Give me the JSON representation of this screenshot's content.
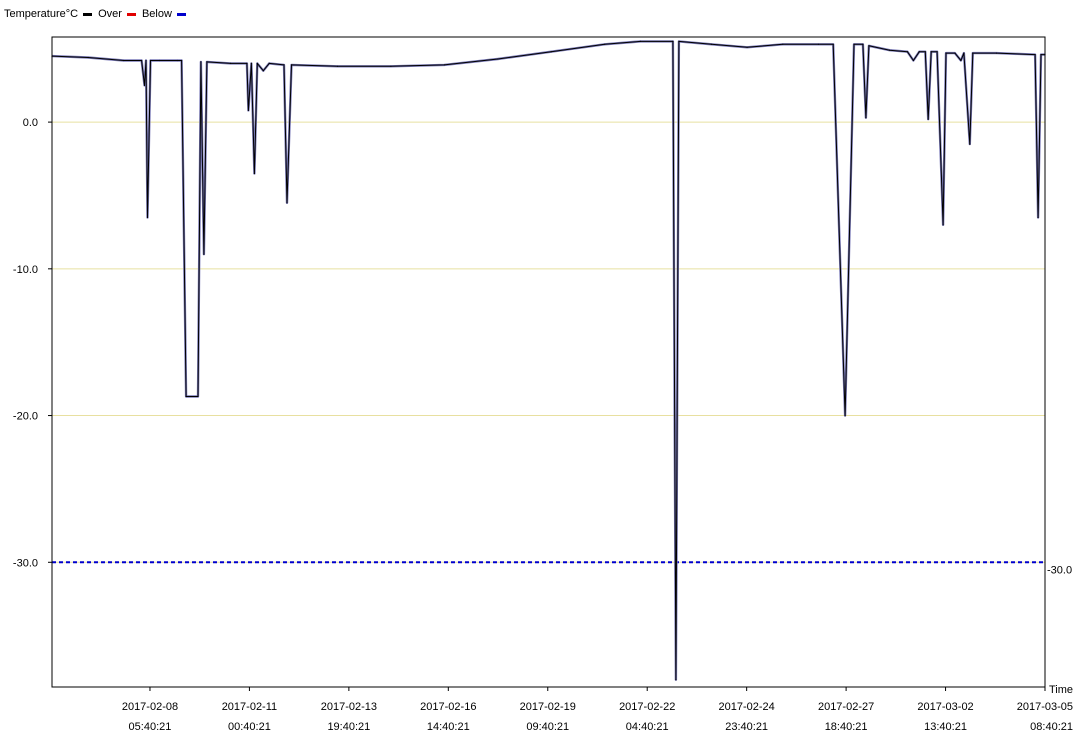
{
  "legend": {
    "title": "Temperature°C",
    "items": [
      {
        "label": "Over",
        "color": "#000000"
      },
      {
        "label": "Below",
        "color": "#0000cc"
      }
    ],
    "title_color": "#000000",
    "over_color": "#e00000",
    "below_color": "#0000cc"
  },
  "chart_data": {
    "type": "line",
    "title": "Temperature°C",
    "xlabel": "Time",
    "ylabel": "",
    "ylim": [
      -38.5,
      5.8
    ],
    "xlim": [
      "2017-02-05 11:40",
      "2017-03-05 08:40:21"
    ],
    "y_ticks": [
      "0.0",
      "-10.0",
      "-20.0",
      "-30.0"
    ],
    "y_tick_values": [
      0,
      -10,
      -20,
      -30
    ],
    "x_ticks": [
      {
        "date": "2017-02-08",
        "time": "05:40:21"
      },
      {
        "date": "2017-02-11",
        "time": "00:40:21"
      },
      {
        "date": "2017-02-13",
        "time": "19:40:21"
      },
      {
        "date": "2017-02-16",
        "time": "14:40:21"
      },
      {
        "date": "2017-02-19",
        "time": "09:40:21"
      },
      {
        "date": "2017-02-22",
        "time": "04:40:21"
      },
      {
        "date": "2017-02-24",
        "time": "23:40:21"
      },
      {
        "date": "2017-02-27",
        "time": "18:40:21"
      },
      {
        "date": "2017-03-02",
        "time": "13:40:21"
      },
      {
        "date": "2017-03-05",
        "time": "08:40:21"
      }
    ],
    "threshold": {
      "value": -30.0,
      "label": "-30.0",
      "color": "#0000cc",
      "style": "dashed"
    },
    "grid": {
      "horizontal": true,
      "vertical": false,
      "color": "#e8e0a0"
    },
    "series": [
      {
        "name": "Temperature°C",
        "color": "#000000",
        "points": [
          [
            "2017-02-05 11:40",
            4.5
          ],
          [
            "2017-02-06 12:00",
            4.4
          ],
          [
            "2017-02-07 12:00",
            4.2
          ],
          [
            "2017-02-08 00:00",
            4.2
          ],
          [
            "2017-02-08 02:00",
            2.5
          ],
          [
            "2017-02-08 03:00",
            4.2
          ],
          [
            "2017-02-08 04:00",
            -6.5
          ],
          [
            "2017-02-08 06:00",
            4.2
          ],
          [
            "2017-02-08 12:00",
            4.2
          ],
          [
            "2017-02-09 00:00",
            4.2
          ],
          [
            "2017-02-09 03:00",
            4.2
          ],
          [
            "2017-02-09 06:00",
            -18.7
          ],
          [
            "2017-02-09 14:00",
            -18.7
          ],
          [
            "2017-02-09 16:00",
            4.1
          ],
          [
            "2017-02-09 18:00",
            -9.0
          ],
          [
            "2017-02-09 20:00",
            4.1
          ],
          [
            "2017-02-10 12:00",
            4.0
          ],
          [
            "2017-02-10 23:00",
            4.0
          ],
          [
            "2017-02-11 00:00",
            0.8
          ],
          [
            "2017-02-11 02:00",
            4.0
          ],
          [
            "2017-02-11 04:00",
            -3.5
          ],
          [
            "2017-02-11 06:00",
            4.0
          ],
          [
            "2017-02-11 10:00",
            3.5
          ],
          [
            "2017-02-11 14:00",
            4.0
          ],
          [
            "2017-02-12 00:00",
            3.9
          ],
          [
            "2017-02-12 02:00",
            -5.5
          ],
          [
            "2017-02-12 05:00",
            3.9
          ],
          [
            "2017-02-13 12:00",
            3.8
          ],
          [
            "2017-02-15 00:00",
            3.8
          ],
          [
            "2017-02-16 12:00",
            3.9
          ],
          [
            "2017-02-18 00:00",
            4.3
          ],
          [
            "2017-02-19 12:00",
            4.8
          ],
          [
            "2017-02-21 00:00",
            5.3
          ],
          [
            "2017-02-22 00:00",
            5.5
          ],
          [
            "2017-02-22 22:00",
            5.5
          ],
          [
            "2017-02-23 00:00",
            -38.0
          ],
          [
            "2017-02-23 02:00",
            5.5
          ],
          [
            "2017-02-24 00:00",
            5.3
          ],
          [
            "2017-02-25 00:00",
            5.1
          ],
          [
            "2017-02-26 00:00",
            5.3
          ],
          [
            "2017-02-27 00:00",
            5.3
          ],
          [
            "2017-02-27 10:00",
            5.3
          ],
          [
            "2017-02-27 18:00",
            -20.0
          ],
          [
            "2017-02-28 00:00",
            5.3
          ],
          [
            "2017-02-28 06:00",
            5.3
          ],
          [
            "2017-02-28 08:00",
            0.3
          ],
          [
            "2017-02-28 10:00",
            5.2
          ],
          [
            "2017-03-01 00:00",
            4.9
          ],
          [
            "2017-03-01 12:00",
            4.8
          ],
          [
            "2017-03-01 16:00",
            4.2
          ],
          [
            "2017-03-01 20:00",
            4.8
          ],
          [
            "2017-03-02 00:00",
            4.8
          ],
          [
            "2017-03-02 02:00",
            0.2
          ],
          [
            "2017-03-02 04:00",
            4.8
          ],
          [
            "2017-03-02 08:00",
            4.8
          ],
          [
            "2017-03-02 12:00",
            -7.0
          ],
          [
            "2017-03-02 14:00",
            4.7
          ],
          [
            "2017-03-02 20:00",
            4.7
          ],
          [
            "2017-03-03 00:00",
            4.2
          ],
          [
            "2017-03-03 02:00",
            4.7
          ],
          [
            "2017-03-03 06:00",
            -1.5
          ],
          [
            "2017-03-03 08:00",
            4.7
          ],
          [
            "2017-03-04 00:00",
            4.7
          ],
          [
            "2017-03-05 02:00",
            4.6
          ],
          [
            "2017-03-05 04:00",
            -6.5
          ],
          [
            "2017-03-05 06:00",
            4.6
          ],
          [
            "2017-03-05 08:40:21",
            4.6
          ]
        ]
      }
    ]
  }
}
